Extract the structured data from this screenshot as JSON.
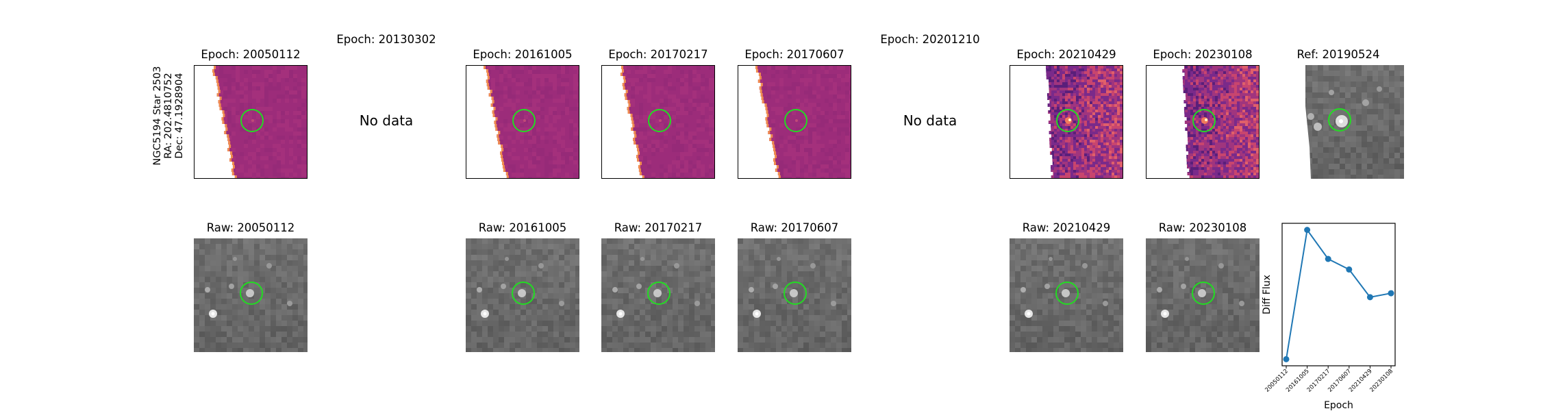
{
  "star": {
    "name": "NGC5194 Star 2503",
    "ra": "RA: 202.4810752",
    "dec": "Dec: 47.1928904"
  },
  "no_data_label": "No data",
  "top_panels": [
    {
      "title": "Epoch: 20050112",
      "status": "image",
      "style": "diff-edge"
    },
    {
      "title": "Epoch: 20130302",
      "status": "nodata"
    },
    {
      "title": "Epoch: 20161005",
      "status": "image",
      "style": "diff-edge"
    },
    {
      "title": "Epoch: 20170217",
      "status": "image",
      "style": "diff-edge"
    },
    {
      "title": "Epoch: 20170607",
      "status": "image",
      "style": "diff-edge"
    },
    {
      "title": "Epoch: 20201210",
      "status": "nodata"
    },
    {
      "title": "Epoch: 20210429",
      "status": "image",
      "style": "diff-noisy"
    },
    {
      "title": "Epoch: 20230108",
      "status": "image",
      "style": "diff-noisy"
    },
    {
      "title": "Ref: 20190524",
      "status": "image",
      "style": "ref"
    }
  ],
  "raw_panels": [
    {
      "title": "Raw: 20050112"
    },
    {
      "title": "Raw: 20161005"
    },
    {
      "title": "Raw: 20170217"
    },
    {
      "title": "Raw: 20170607"
    },
    {
      "title": "Raw: 20210429"
    },
    {
      "title": "Raw: 20230108"
    }
  ],
  "colors": {
    "marker_circle": "#22dd22",
    "diff_purple": "#a02d7a",
    "diff_edge_orange": "#f08c50",
    "line_series": "#1f77b4"
  },
  "chart_data": {
    "type": "line",
    "title": "",
    "xlabel": "Epoch",
    "ylabel": "Diff Flux",
    "categories": [
      "20050112",
      "20161005",
      "20170217",
      "20170607",
      "20210429",
      "20230108"
    ],
    "values": [
      0.02,
      1.0,
      0.78,
      0.7,
      0.49,
      0.52
    ],
    "ylim": [
      -0.03,
      1.05
    ],
    "grid": false,
    "yticks_shown": false
  }
}
